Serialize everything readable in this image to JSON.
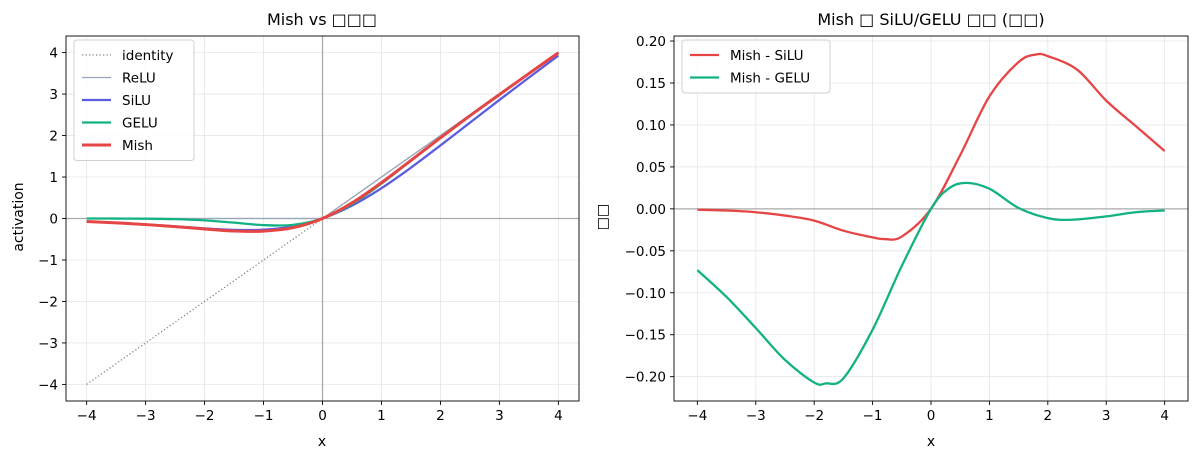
{
  "chart_data": [
    {
      "type": "line",
      "title": "Mish vs □□□",
      "xlabel": "x",
      "ylabel": "activation",
      "xlim": [
        -4.35,
        4.35
      ],
      "ylim": [
        -4.4,
        4.4
      ],
      "xticks": [
        -4,
        -3,
        -2,
        -1,
        0,
        1,
        2,
        3,
        4
      ],
      "yticks": [
        -4,
        -3,
        -2,
        -1,
        0,
        1,
        2,
        3,
        4
      ],
      "grid": true,
      "legend_position": "top-left",
      "reference_lines": {
        "x": 0,
        "y": 0
      },
      "series": [
        {
          "name": "identity",
          "color": "#888888",
          "style": "dotted",
          "x": [
            -4,
            4
          ],
          "y": [
            -4,
            4
          ]
        },
        {
          "name": "ReLU",
          "color": "#97a6b8",
          "style": "solid",
          "x": [
            -4,
            0,
            4
          ],
          "y": [
            0,
            0,
            4
          ]
        },
        {
          "name": "SiLU",
          "color": "#5b5ce0",
          "style": "solid",
          "x": [
            -4,
            -3.5,
            -3,
            -2.5,
            -2,
            -1.5,
            -1,
            -0.5,
            0,
            0.5,
            1,
            1.5,
            2,
            2.5,
            3,
            3.5,
            4
          ],
          "y": [
            -0.072,
            -0.102,
            -0.142,
            -0.19,
            -0.238,
            -0.274,
            -0.269,
            -0.189,
            0,
            0.311,
            0.731,
            1.226,
            1.762,
            2.31,
            2.858,
            3.396,
            3.928
          ]
        },
        {
          "name": "GELU",
          "color": "#13b283",
          "style": "solid",
          "x": [
            -4,
            -3.5,
            -3,
            -2.5,
            -2,
            -1.5,
            -1,
            -0.5,
            0,
            0.5,
            1,
            1.5,
            2,
            2.5,
            3,
            3.5,
            4
          ],
          "y": [
            0,
            -0.001,
            -0.004,
            -0.016,
            -0.045,
            -0.1,
            -0.159,
            -0.154,
            0,
            0.346,
            0.841,
            1.4,
            1.955,
            2.484,
            2.996,
            3.499,
            4
          ]
        },
        {
          "name": "Mish",
          "color": "#e64545",
          "style": "solid",
          "x": [
            -4,
            -3.5,
            -3,
            -2.5,
            -2,
            -1.5,
            -1,
            -0.5,
            0,
            0.5,
            1,
            1.5,
            2,
            2.5,
            3,
            3.5,
            4
          ],
          "y": [
            -0.073,
            -0.106,
            -0.146,
            -0.196,
            -0.252,
            -0.302,
            -0.303,
            -0.222,
            0,
            0.375,
            0.865,
            1.401,
            1.944,
            2.476,
            2.987,
            3.495,
            3.997
          ]
        }
      ]
    },
    {
      "type": "line",
      "title": "Mish □ SiLU/GELU □□ (□□)",
      "xlabel": "x",
      "ylabel": "□□",
      "xlim": [
        -4.4,
        4.4
      ],
      "ylim": [
        -0.229,
        0.206
      ],
      "xticks": [
        -4,
        -3,
        -2,
        -1,
        0,
        1,
        2,
        3,
        4
      ],
      "yticks": [
        -0.2,
        -0.15,
        -0.1,
        -0.05,
        0.0,
        0.05,
        0.1,
        0.15,
        0.2
      ],
      "ytick_labels": [
        "−0.20",
        "−0.15",
        "−0.10",
        "−0.05",
        "0.00",
        "0.05",
        "0.10",
        "0.15",
        "0.20"
      ],
      "grid": true,
      "legend_position": "top-left",
      "reference_lines": {
        "y": 0
      },
      "series": [
        {
          "name": "Mish - SiLU",
          "color": "#e64545",
          "style": "solid",
          "x": [
            -4,
            -3.5,
            -3,
            -2.5,
            -2,
            -1.5,
            -1,
            -0.8,
            -0.5,
            0,
            0.5,
            1,
            1.5,
            1.8,
            2,
            2.5,
            3,
            3.5,
            4
          ],
          "y": [
            -0.001,
            -0.002,
            -0.004,
            -0.008,
            -0.014,
            -0.026,
            -0.034,
            -0.036,
            -0.033,
            0,
            0.064,
            0.134,
            0.175,
            0.184,
            0.182,
            0.166,
            0.129,
            0.099,
            0.069
          ]
        },
        {
          "name": "Mish - GELU",
          "color": "#13b283",
          "style": "solid",
          "x": [
            -4,
            -3.5,
            -3,
            -2.5,
            -2,
            -1.8,
            -1.5,
            -1,
            -0.5,
            0,
            0.3,
            0.6,
            1,
            1.5,
            2,
            2.4,
            3,
            3.5,
            4
          ],
          "y": [
            -0.073,
            -0.105,
            -0.142,
            -0.18,
            -0.207,
            -0.208,
            -0.202,
            -0.144,
            -0.068,
            0,
            0.024,
            0.031,
            0.024,
            0.001,
            -0.011,
            -0.013,
            -0.009,
            -0.004,
            -0.002
          ]
        }
      ]
    }
  ]
}
